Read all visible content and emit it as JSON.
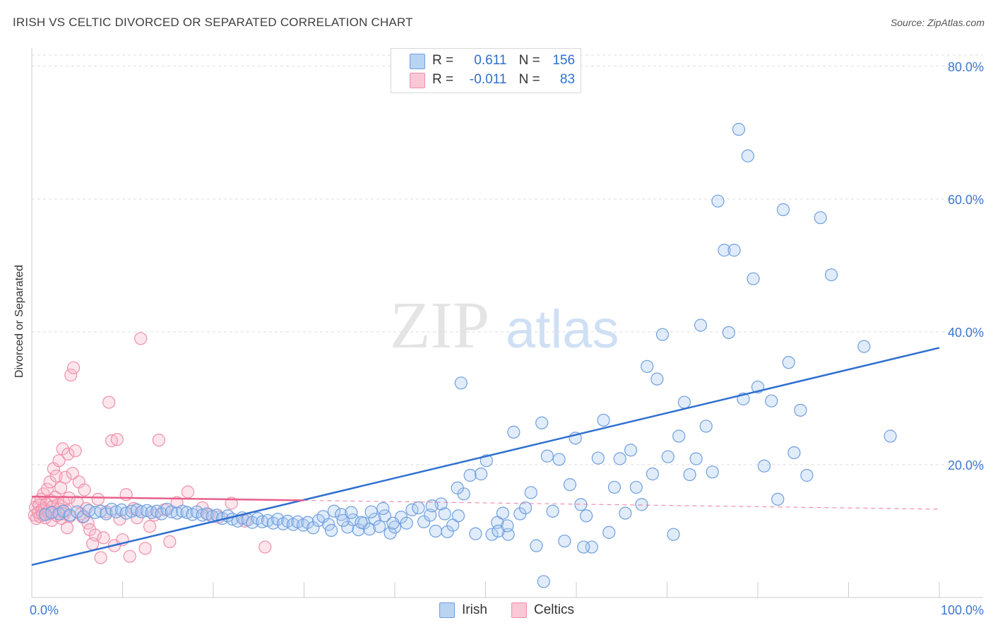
{
  "title": "IRISH VS CELTIC DIVORCED OR SEPARATED CORRELATION CHART",
  "source": "Source: ZipAtlas.com",
  "watermark": {
    "zip": "ZIP",
    "atlas": "atlas"
  },
  "legend": {
    "irish": {
      "r_label": "R =",
      "r_value": "0.611",
      "n_label": "N =",
      "n_value": "156"
    },
    "celtics": {
      "r_label": "R =",
      "r_value": "-0.011",
      "n_label": "N =",
      "n_value": "83"
    }
  },
  "bottom_legend": {
    "irish": "Irish",
    "celtics": "Celtics"
  },
  "colors": {
    "irish_fill": "#a9c8f0",
    "irish_stroke": "#6f9fdf",
    "irish_line": "#2e6fcf",
    "celtics_fill": "#f7b6c9",
    "celtics_stroke": "#ef8fab",
    "celtics_line": "#e8608c",
    "grid": "#dddddd",
    "axis_label": "#3d77d0"
  },
  "chart_data": {
    "type": "scatter",
    "title": "IRISH VS CELTIC DIVORCED OR SEPARATED CORRELATION CHART",
    "xlabel": "",
    "ylabel": "Divorced or Separated",
    "xlim": [
      0,
      100
    ],
    "ylim": [
      0,
      82
    ],
    "x_tick_labels": [
      "0.0%",
      "100.0%"
    ],
    "y_ticks": [
      20,
      40,
      60,
      80
    ],
    "y_tick_labels": [
      "20.0%",
      "40.0%",
      "60.0%",
      "80.0%"
    ],
    "grid": true,
    "series": [
      {
        "name": "Irish",
        "r": 0.611,
        "n": 156,
        "trend": {
          "x": [
            0,
            100
          ],
          "y": [
            4.9,
            37.6
          ]
        },
        "points": [
          [
            1.5,
            12.5
          ],
          [
            2.2,
            12.8
          ],
          [
            3.0,
            12.6
          ],
          [
            3.5,
            13.0
          ],
          [
            4.2,
            12.4
          ],
          [
            5.0,
            12.9
          ],
          [
            5.7,
            12.2
          ],
          [
            6.3,
            13.1
          ],
          [
            7.0,
            12.8
          ],
          [
            7.6,
            13.0
          ],
          [
            8.2,
            12.6
          ],
          [
            8.8,
            13.3
          ],
          [
            9.3,
            12.9
          ],
          [
            9.9,
            13.2
          ],
          [
            10.4,
            12.7
          ],
          [
            11.0,
            13.0
          ],
          [
            11.6,
            13.2
          ],
          [
            12.1,
            12.9
          ],
          [
            12.7,
            13.1
          ],
          [
            13.2,
            12.8
          ],
          [
            13.8,
            13.0
          ],
          [
            14.3,
            12.6
          ],
          [
            14.9,
            13.3
          ],
          [
            15.4,
            12.9
          ],
          [
            16.0,
            12.7
          ],
          [
            16.6,
            13.0
          ],
          [
            17.1,
            12.8
          ],
          [
            17.7,
            12.5
          ],
          [
            18.2,
            12.9
          ],
          [
            18.8,
            12.4
          ],
          [
            19.3,
            12.6
          ],
          [
            19.9,
            12.2
          ],
          [
            20.4,
            12.4
          ],
          [
            21.0,
            11.9
          ],
          [
            21.6,
            12.3
          ],
          [
            22.1,
            11.8
          ],
          [
            22.7,
            11.5
          ],
          [
            23.2,
            12.0
          ],
          [
            23.8,
            11.7
          ],
          [
            24.3,
            11.3
          ],
          [
            24.9,
            11.9
          ],
          [
            25.4,
            11.4
          ],
          [
            26.0,
            11.6
          ],
          [
            26.6,
            11.2
          ],
          [
            27.1,
            11.8
          ],
          [
            27.7,
            11.1
          ],
          [
            28.2,
            11.5
          ],
          [
            28.8,
            11.0
          ],
          [
            29.3,
            11.4
          ],
          [
            29.9,
            10.9
          ],
          [
            30.4,
            11.3
          ],
          [
            31.0,
            10.5
          ],
          [
            31.6,
            11.6
          ],
          [
            32.1,
            12.2
          ],
          [
            32.7,
            11.0
          ],
          [
            33.3,
            13.0
          ],
          [
            34.1,
            12.5
          ],
          [
            34.8,
            10.6
          ],
          [
            35.4,
            11.7
          ],
          [
            36.0,
            10.2
          ],
          [
            36.6,
            11.2
          ],
          [
            37.2,
            10.3
          ],
          [
            37.8,
            11.8
          ],
          [
            38.3,
            10.7
          ],
          [
            38.9,
            12.3
          ],
          [
            39.5,
            9.7
          ],
          [
            40.0,
            10.6
          ],
          [
            40.7,
            12.1
          ],
          [
            41.3,
            11.2
          ],
          [
            41.9,
            13.2
          ],
          [
            42.6,
            13.5
          ],
          [
            43.2,
            11.4
          ],
          [
            43.9,
            12.4
          ],
          [
            44.5,
            10.0
          ],
          [
            45.1,
            14.1
          ],
          [
            45.8,
            9.9
          ],
          [
            46.4,
            10.9
          ],
          [
            47.0,
            12.3
          ],
          [
            47.6,
            15.6
          ],
          [
            48.3,
            18.4
          ],
          [
            48.9,
            9.6
          ],
          [
            49.5,
            18.6
          ],
          [
            50.1,
            20.6
          ],
          [
            50.7,
            9.5
          ],
          [
            51.3,
            11.3
          ],
          [
            51.9,
            12.7
          ],
          [
            52.5,
            9.5
          ],
          [
            53.1,
            24.9
          ],
          [
            53.8,
            12.6
          ],
          [
            54.4,
            13.5
          ],
          [
            55.0,
            15.8
          ],
          [
            55.6,
            7.8
          ],
          [
            56.2,
            26.3
          ],
          [
            56.8,
            21.3
          ],
          [
            57.4,
            13.0
          ],
          [
            58.1,
            20.8
          ],
          [
            58.7,
            8.5
          ],
          [
            59.3,
            17.0
          ],
          [
            59.9,
            24.0
          ],
          [
            60.5,
            14.0
          ],
          [
            61.1,
            12.3
          ],
          [
            61.7,
            7.6
          ],
          [
            62.4,
            21.0
          ],
          [
            63.0,
            26.7
          ],
          [
            63.6,
            9.8
          ],
          [
            64.2,
            16.6
          ],
          [
            64.8,
            20.9
          ],
          [
            65.4,
            12.7
          ],
          [
            66.0,
            22.2
          ],
          [
            66.6,
            16.6
          ],
          [
            67.2,
            14.0
          ],
          [
            67.8,
            34.8
          ],
          [
            68.4,
            18.6
          ],
          [
            68.9,
            32.9
          ],
          [
            69.5,
            39.6
          ],
          [
            70.1,
            21.2
          ],
          [
            70.7,
            9.5
          ],
          [
            71.3,
            24.3
          ],
          [
            71.9,
            29.4
          ],
          [
            72.5,
            18.5
          ],
          [
            73.2,
            20.9
          ],
          [
            73.7,
            41.0
          ],
          [
            74.3,
            25.8
          ],
          [
            75.0,
            18.9
          ],
          [
            75.6,
            59.7
          ],
          [
            76.3,
            52.3
          ],
          [
            76.8,
            39.9
          ],
          [
            77.4,
            52.3
          ],
          [
            77.9,
            70.5
          ],
          [
            78.4,
            29.9
          ],
          [
            78.9,
            66.5
          ],
          [
            79.5,
            48.0
          ],
          [
            80.0,
            31.7
          ],
          [
            80.7,
            19.8
          ],
          [
            81.5,
            29.6
          ],
          [
            82.2,
            14.8
          ],
          [
            82.8,
            58.4
          ],
          [
            83.4,
            35.4
          ],
          [
            84.0,
            21.8
          ],
          [
            84.7,
            28.2
          ],
          [
            85.4,
            18.4
          ],
          [
            86.9,
            57.2
          ],
          [
            88.1,
            48.6
          ],
          [
            91.7,
            37.8
          ],
          [
            94.6,
            24.3
          ],
          [
            33.0,
            10.1
          ],
          [
            34.3,
            11.6
          ],
          [
            35.2,
            12.8
          ],
          [
            36.3,
            11.3
          ],
          [
            37.4,
            12.9
          ],
          [
            38.7,
            13.4
          ],
          [
            39.8,
            11.2
          ],
          [
            44.1,
            13.8
          ],
          [
            45.5,
            12.6
          ],
          [
            46.9,
            16.5
          ],
          [
            47.3,
            32.3
          ],
          [
            51.4,
            10.0
          ],
          [
            52.4,
            10.8
          ],
          [
            56.4,
            2.4
          ],
          [
            60.8,
            7.6
          ]
        ]
      },
      {
        "name": "Celtics",
        "r": -0.011,
        "n": 83,
        "trend": {
          "x": [
            0,
            100
          ],
          "y": [
            15.2,
            13.3
          ]
        },
        "points": [
          [
            0.3,
            12.4
          ],
          [
            0.4,
            13.6
          ],
          [
            0.5,
            11.9
          ],
          [
            0.6,
            14.4
          ],
          [
            0.7,
            12.8
          ],
          [
            0.8,
            13.9
          ],
          [
            0.9,
            12.2
          ],
          [
            1.0,
            14.8
          ],
          [
            1.1,
            13.1
          ],
          [
            1.2,
            12.5
          ],
          [
            1.3,
            15.6
          ],
          [
            1.4,
            13.4
          ],
          [
            1.5,
            12.0
          ],
          [
            1.6,
            14.1
          ],
          [
            1.7,
            16.3
          ],
          [
            1.8,
            13.0
          ],
          [
            1.9,
            12.6
          ],
          [
            2.0,
            17.4
          ],
          [
            2.1,
            14.6
          ],
          [
            2.2,
            11.6
          ],
          [
            2.3,
            13.7
          ],
          [
            2.4,
            19.4
          ],
          [
            2.5,
            12.9
          ],
          [
            2.6,
            15.1
          ],
          [
            2.7,
            18.3
          ],
          [
            2.8,
            12.3
          ],
          [
            2.9,
            14.0
          ],
          [
            3.0,
            20.6
          ],
          [
            3.1,
            13.3
          ],
          [
            3.2,
            16.5
          ],
          [
            3.3,
            11.9
          ],
          [
            3.4,
            22.4
          ],
          [
            3.5,
            14.4
          ],
          [
            3.6,
            12.6
          ],
          [
            3.7,
            18.1
          ],
          [
            3.8,
            13.1
          ],
          [
            3.9,
            10.5
          ],
          [
            4.0,
            21.6
          ],
          [
            4.1,
            15.0
          ],
          [
            4.2,
            12.2
          ],
          [
            4.3,
            33.5
          ],
          [
            4.5,
            18.7
          ],
          [
            4.6,
            34.6
          ],
          [
            4.8,
            22.1
          ],
          [
            5.0,
            14.4
          ],
          [
            5.2,
            17.4
          ],
          [
            5.4,
            12.6
          ],
          [
            5.6,
            12.1
          ],
          [
            5.8,
            16.2
          ],
          [
            6.0,
            13.4
          ],
          [
            6.2,
            11.2
          ],
          [
            6.4,
            10.2
          ],
          [
            6.7,
            8.1
          ],
          [
            7.0,
            9.4
          ],
          [
            7.3,
            14.8
          ],
          [
            7.6,
            6.0
          ],
          [
            7.9,
            9.0
          ],
          [
            8.2,
            12.9
          ],
          [
            8.5,
            29.4
          ],
          [
            8.8,
            23.6
          ],
          [
            9.1,
            7.8
          ],
          [
            9.4,
            23.8
          ],
          [
            9.7,
            11.8
          ],
          [
            10.0,
            8.7
          ],
          [
            10.4,
            15.5
          ],
          [
            10.8,
            6.2
          ],
          [
            11.2,
            13.4
          ],
          [
            11.6,
            12.0
          ],
          [
            12.0,
            39.0
          ],
          [
            12.5,
            7.4
          ],
          [
            13.0,
            10.7
          ],
          [
            13.5,
            12.4
          ],
          [
            14.0,
            23.7
          ],
          [
            14.6,
            13.2
          ],
          [
            15.2,
            8.4
          ],
          [
            16.0,
            14.3
          ],
          [
            17.2,
            15.9
          ],
          [
            18.8,
            13.5
          ],
          [
            19.5,
            12.5
          ],
          [
            20.6,
            12.1
          ],
          [
            22.0,
            14.2
          ],
          [
            23.5,
            11.5
          ],
          [
            25.7,
            7.6
          ]
        ]
      }
    ]
  }
}
